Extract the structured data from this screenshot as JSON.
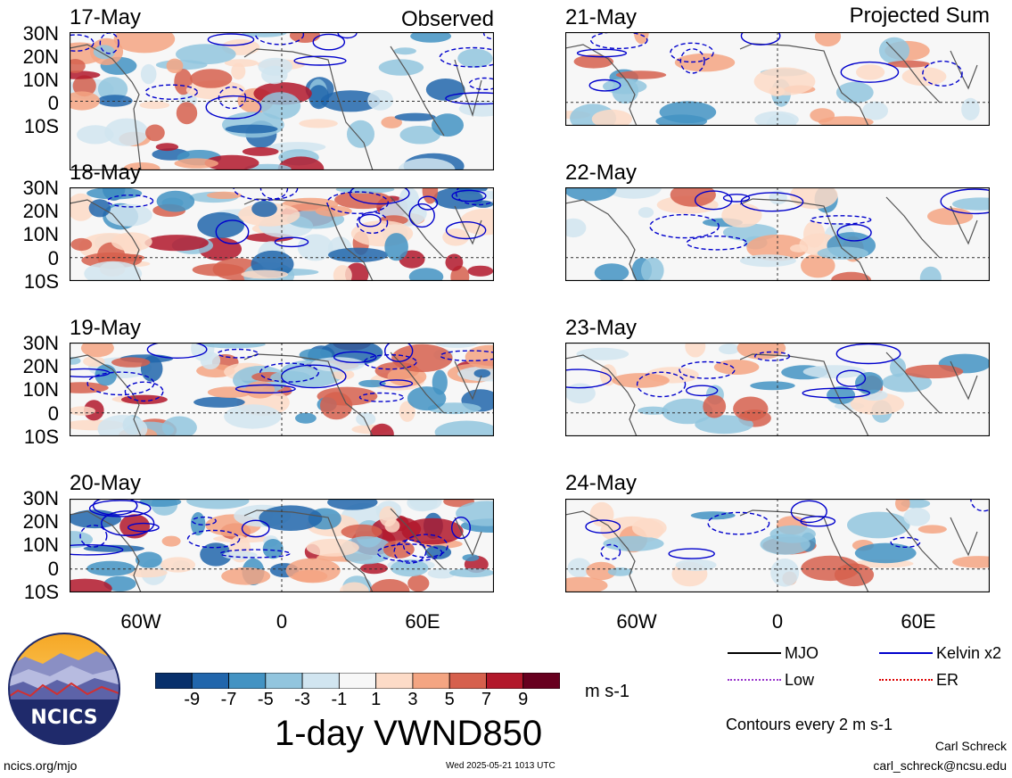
{
  "panels_left": [
    {
      "date": "17-May",
      "corner": "Observed"
    },
    {
      "date": "18-May",
      "corner": ""
    },
    {
      "date": "19-May",
      "corner": ""
    },
    {
      "date": "20-May",
      "corner": ""
    }
  ],
  "panels_right": [
    {
      "date": "21-May",
      "corner": "Projected Sum"
    },
    {
      "date": "22-May",
      "corner": ""
    },
    {
      "date": "23-May",
      "corner": ""
    },
    {
      "date": "24-May",
      "corner": ""
    }
  ],
  "lat_labels": [
    "30N",
    "20N",
    "10N",
    "0",
    "10S"
  ],
  "lon_labels": [
    "60W",
    "0",
    "60E"
  ],
  "colorbar": {
    "labels": [
      "-9",
      "-7",
      "-5",
      "-3",
      "-1",
      "1",
      "3",
      "5",
      "7",
      "9"
    ],
    "colors": [
      "#08306b",
      "#2166ac",
      "#4393c3",
      "#92c5de",
      "#d1e5f0",
      "#f7f7f7",
      "#fddbc7",
      "#f4a582",
      "#d6604d",
      "#b2182b",
      "#67001f"
    ],
    "units": "m s-1"
  },
  "title": "1-day VWND850",
  "legend": {
    "items": [
      {
        "label": "MJO",
        "color": "#000000"
      },
      {
        "label": "Kelvin x2",
        "color": "#0000cc"
      },
      {
        "label": "Low",
        "color": "#9933cc"
      },
      {
        "label": "ER",
        "color": "#dd0000"
      }
    ],
    "note": "Contours every 2 m s-1"
  },
  "logo_text": "NCICS",
  "footer": {
    "left": "ncics.org/mjo",
    "center": "Wed 2025-05-21 1013 UTC",
    "author": "Carl Schreck",
    "email": "carl_schreck@ncsu.edu"
  }
}
